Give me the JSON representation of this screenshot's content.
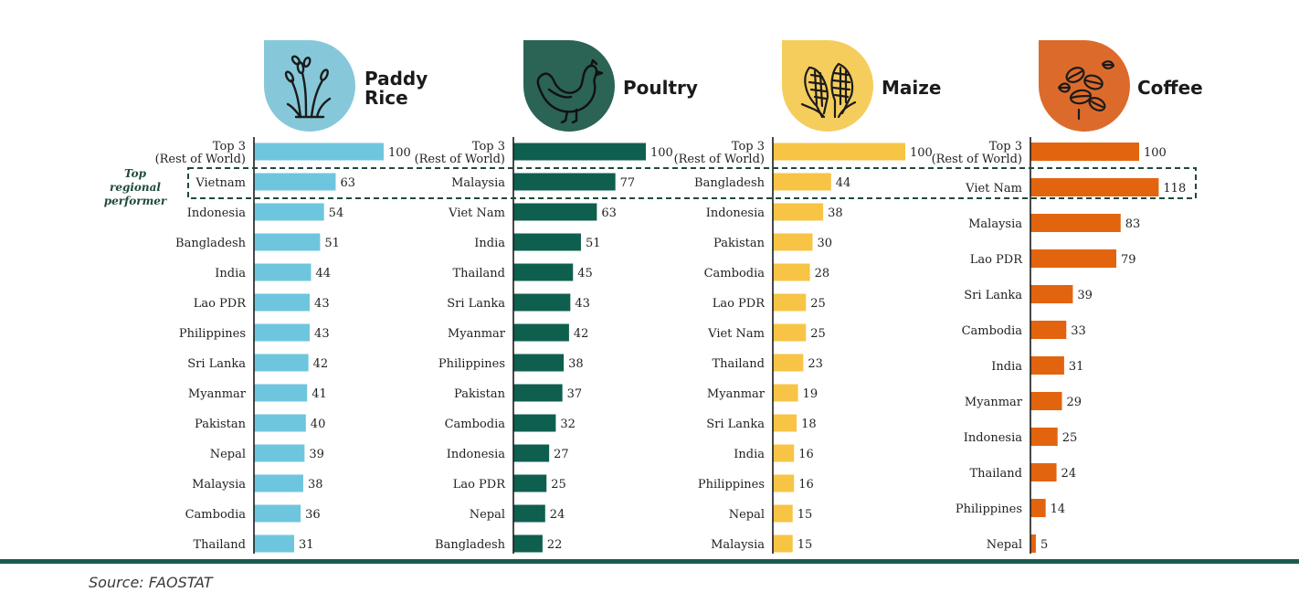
{
  "highlight_note": "Top\nregional\nperformer",
  "source": "Source: FAOSTAT",
  "colors": {
    "rice": "#6ec6de",
    "poultry": "#0f5f4f",
    "maize": "#f7c445",
    "coffee": "#e3640e",
    "rice_badge": "#86c8d9",
    "poultry_badge": "#2b6355",
    "maize_badge": "#f5cd5d",
    "coffee_badge": "#dc6b2b",
    "highlight_border": "#1e4a3c",
    "footer": "#1a5c4e"
  },
  "icons": [
    "rice-plant-icon",
    "chicken-icon",
    "corn-icon",
    "coffee-beans-icon"
  ],
  "chart_data": [
    {
      "type": "bar",
      "orientation": "horizontal",
      "title": "Paddy Rice",
      "categories": [
        "Top 3\n(Rest of World)",
        "Vietnam",
        "Indonesia",
        "Bangladesh",
        "India",
        "Lao PDR",
        "Philippines",
        "Sri Lanka",
        "Myanmar",
        "Pakistan",
        "Nepal",
        "Malaysia",
        "Cambodia",
        "Thailand"
      ],
      "values": [
        100,
        63,
        54,
        51,
        44,
        43,
        43,
        42,
        41,
        40,
        39,
        38,
        36,
        31
      ],
      "highlight_index": 1,
      "xlim": [
        0,
        118
      ]
    },
    {
      "type": "bar",
      "orientation": "horizontal",
      "title": "Poultry",
      "categories": [
        "Top 3\n(Rest of World)",
        "Malaysia",
        "Viet Nam",
        "India",
        "Thailand",
        "Sri Lanka",
        "Myanmar",
        "Philippines",
        "Pakistan",
        "Cambodia",
        "Indonesia",
        "Lao PDR",
        "Nepal",
        "Bangladesh"
      ],
      "values": [
        100,
        77,
        63,
        51,
        45,
        43,
        42,
        38,
        37,
        32,
        27,
        25,
        24,
        22
      ],
      "highlight_index": 1,
      "xlim": [
        0,
        118
      ]
    },
    {
      "type": "bar",
      "orientation": "horizontal",
      "title": "Maize",
      "categories": [
        "Top 3\n(Rest of World)",
        "Bangladesh",
        "Indonesia",
        "Pakistan",
        "Cambodia",
        "Lao PDR",
        "Viet Nam",
        "Thailand",
        "Myanmar",
        "Sri Lanka",
        "India",
        "Philippines",
        "Nepal",
        "Malaysia"
      ],
      "values": [
        100,
        44,
        38,
        30,
        28,
        25,
        25,
        23,
        19,
        18,
        16,
        16,
        15,
        15
      ],
      "highlight_index": 1,
      "xlim": [
        0,
        118
      ]
    },
    {
      "type": "bar",
      "orientation": "horizontal",
      "title": "Coffee",
      "categories": [
        "Top 3\n(Rest of World)",
        "Viet Nam",
        "Malaysia",
        "Lao PDR",
        "Sri Lanka",
        "Cambodia",
        "India",
        "Myanmar",
        "Indonesia",
        "Thailand",
        "Philippines",
        "Nepal"
      ],
      "values": [
        100,
        118,
        83,
        79,
        39,
        33,
        31,
        29,
        25,
        24,
        14,
        5
      ],
      "highlight_index": 1,
      "xlim": [
        0,
        118
      ]
    }
  ]
}
